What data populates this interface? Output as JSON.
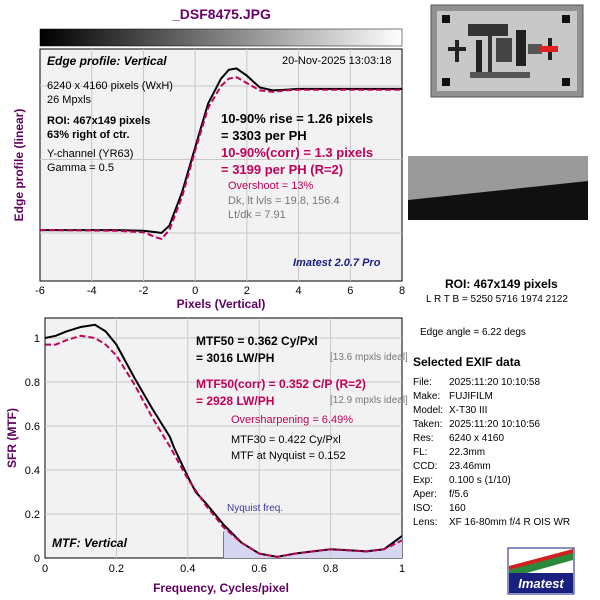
{
  "file_title": "_DSF8475.JPG",
  "colors": {
    "plot_bg": "#f2f2f2",
    "title": "#6a006a",
    "maroon": "#c0005a",
    "label": "#600060",
    "nyquist_fill": "#d6d6f0",
    "nyquist_text": "#3a3aa0",
    "logo_text": "#1a2080"
  },
  "edge_panel": {
    "heading": "Edge profile: Vertical",
    "date": "20-Nov-2025 13:03:18",
    "info": [
      "6240 x 4160 pixels (WxH)",
      "26 Mpxls"
    ],
    "roi_lines": [
      "ROI: 467x149 pixels",
      "63% right of ctr."
    ],
    "channel_lines": [
      "Y-channel  (YR63)",
      "Gamma = 0.5"
    ],
    "rise_lines": [
      "10-90% rise = 1.26 pixels",
      "= 3303 per PH"
    ],
    "corr_lines": [
      "10-90%(corr) = 1.3 pixels",
      "= 3199 per PH  (R=2)"
    ],
    "overshoot": "Overshoot = 13%",
    "dk": "Dk, lt lvls = 19.8, 156.4",
    "ltdk": "Lt/dk = 7.91",
    "version": "Imatest 2.0.7 Pro"
  },
  "mtf_panel": {
    "heading": "MTF: Vertical",
    "mtf50": [
      "MTF50 = 0.362 Cy/Pxl",
      "= 3016 LW/PH"
    ],
    "mtf50_ideal": "[13.6 mpxls ideal]",
    "mtf50corr": [
      "MTF50(corr) = 0.352 C/P  (R=2)",
      "= 2928 LW/PH"
    ],
    "mtf50corr_ideal": "[12.9 mpxls ideal]",
    "oversharpening": "Oversharpening = 6.49%",
    "mtf30": "MTF30 = 0.422 Cy/Pxl",
    "nyquist_line": "MTF at Nyquist = 0.152",
    "nyquist_label": "Nyquist freq."
  },
  "right_panel": {
    "roi_title": "ROI: 467x149 pixels",
    "lrtb": "L R  T B = 5250 5716  1974 2122",
    "edge_angle": "Edge angle = 6.22 degs",
    "exif_title": "Selected EXIF data",
    "exif": [
      {
        "k": "File:",
        "v": "2025:11:20 10:10:58"
      },
      {
        "k": "Make:",
        "v": "FUJIFILM"
      },
      {
        "k": "Model:",
        "v": "X-T30 III"
      },
      {
        "k": "Taken:",
        "v": "2025:11:20 10:10:56"
      },
      {
        "k": "Res:",
        "v": "6240 x 4160"
      },
      {
        "k": "FL:",
        "v": "22.3mm"
      },
      {
        "k": "CCD:",
        "v": "23.46mm"
      },
      {
        "k": "Exp:",
        "v": "0.100 s  (1/10)"
      },
      {
        "k": "Aper:",
        "v": "f/5.6"
      },
      {
        "k": "ISO:",
        "v": "160"
      },
      {
        "k": "Lens:",
        "v": "XF 16-80mm f/4 R OIS WR"
      }
    ],
    "logo_text": "Imatest"
  },
  "chart_data": [
    {
      "type": "line",
      "title": "Edge profile: Vertical",
      "xlabel": "Pixels (Vertical)",
      "ylabel": "Edge profile (linear)",
      "xlim": [
        -6,
        8
      ],
      "xticks": [
        -6,
        -4,
        -2,
        0,
        2,
        4,
        6,
        8
      ],
      "ylim": [
        0,
        1.2
      ],
      "series": [
        {
          "role": "measured",
          "color": "#000000",
          "x": [
            -6,
            -3,
            -2,
            -1.5,
            -1.3,
            -1,
            -0.5,
            0,
            0.5,
            1,
            1.3,
            1.6,
            2,
            2.5,
            3,
            3.5,
            4,
            5,
            6,
            8
          ],
          "y": [
            0.02,
            0.02,
            0.015,
            0.005,
            0.0,
            0.05,
            0.28,
            0.58,
            0.88,
            1.05,
            1.11,
            1.12,
            1.07,
            0.99,
            0.97,
            0.975,
            0.98,
            0.98,
            0.98,
            0.98
          ]
        },
        {
          "role": "corrected",
          "color": "#c0005a",
          "dashed": true,
          "x": [
            -6,
            -3,
            -2,
            -1.5,
            -1.3,
            -1,
            -0.5,
            0,
            0.5,
            1,
            1.3,
            1.6,
            2,
            2.5,
            3,
            3.5,
            4,
            5,
            6,
            8
          ],
          "y": [
            0.02,
            0.015,
            0.005,
            -0.03,
            -0.04,
            0.02,
            0.25,
            0.56,
            0.85,
            1.0,
            1.05,
            1.06,
            1.02,
            0.97,
            0.96,
            0.97,
            0.975,
            0.975,
            0.975,
            0.975
          ]
        }
      ]
    },
    {
      "type": "line",
      "title": "MTF: Vertical",
      "xlabel": "Frequency, Cycles/pixel",
      "ylabel": "SFR (MTF)",
      "xlim": [
        0,
        1
      ],
      "xticks": [
        0,
        0.2,
        0.4,
        0.6,
        0.8,
        1
      ],
      "ylim": [
        0,
        1.1
      ],
      "yticks": [
        0,
        0.2,
        0.4,
        0.6,
        0.8,
        1
      ],
      "nyquist": 0.5,
      "series": [
        {
          "role": "measured",
          "color": "#000000",
          "x": [
            0,
            0.03,
            0.06,
            0.1,
            0.14,
            0.17,
            0.2,
            0.25,
            0.3,
            0.35,
            0.362,
            0.4,
            0.422,
            0.45,
            0.5,
            0.55,
            0.6,
            0.65,
            0.7,
            0.75,
            0.8,
            0.85,
            0.9,
            0.95,
            1.0
          ],
          "y": [
            1.0,
            1.01,
            1.03,
            1.05,
            1.06,
            1.03,
            0.97,
            0.82,
            0.68,
            0.55,
            0.5,
            0.37,
            0.3,
            0.25,
            0.152,
            0.07,
            0.02,
            0.005,
            0.02,
            0.03,
            0.04,
            0.035,
            0.03,
            0.04,
            0.1
          ]
        },
        {
          "role": "corrected",
          "color": "#c0005a",
          "dashed": true,
          "x": [
            0,
            0.03,
            0.06,
            0.1,
            0.14,
            0.17,
            0.2,
            0.25,
            0.3,
            0.352,
            0.4,
            0.45,
            0.5,
            0.55,
            0.6,
            0.65,
            0.7,
            0.75,
            0.8,
            0.85,
            0.9,
            0.95,
            1.0
          ],
          "y": [
            0.97,
            0.97,
            0.99,
            1.01,
            1.0,
            0.97,
            0.92,
            0.79,
            0.64,
            0.5,
            0.36,
            0.24,
            0.14,
            0.07,
            0.02,
            0.005,
            0.02,
            0.03,
            0.04,
            0.035,
            0.03,
            0.04,
            0.08
          ]
        }
      ]
    }
  ]
}
